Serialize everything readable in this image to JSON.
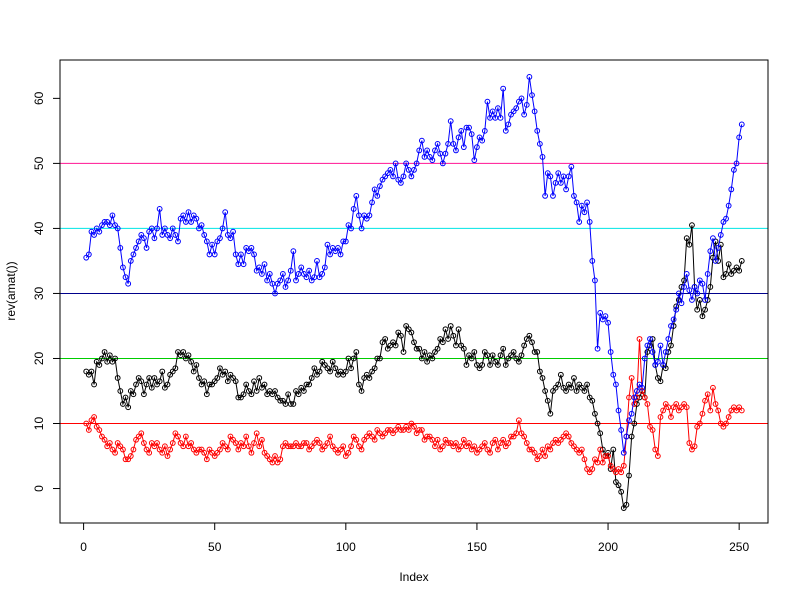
{
  "chart_data": {
    "type": "line",
    "xlabel": "Index",
    "ylabel": "rev(amat())",
    "xlim": [
      -9,
      261
    ],
    "ylim": [
      -5.3,
      65.9
    ],
    "xticks": [
      0,
      50,
      100,
      150,
      200,
      250
    ],
    "yticks": [
      0,
      10,
      20,
      30,
      40,
      50,
      60
    ],
    "hlines": [
      {
        "value": 10,
        "color": "#ff0000"
      },
      {
        "value": 20,
        "color": "#00cd00"
      },
      {
        "value": 30,
        "color": "#00008b"
      },
      {
        "value": 40,
        "color": "#00e5e5"
      },
      {
        "value": 50,
        "color": "#ff1493"
      }
    ],
    "x": [
      1,
      2,
      3,
      4,
      5,
      6,
      7,
      8,
      9,
      10,
      11,
      12,
      13,
      14,
      15,
      16,
      17,
      18,
      19,
      20,
      21,
      22,
      23,
      24,
      25,
      26,
      27,
      28,
      29,
      30,
      31,
      32,
      33,
      34,
      35,
      36,
      37,
      38,
      39,
      40,
      41,
      42,
      43,
      44,
      45,
      46,
      47,
      48,
      49,
      50,
      51,
      52,
      53,
      54,
      55,
      56,
      57,
      58,
      59,
      60,
      61,
      62,
      63,
      64,
      65,
      66,
      67,
      68,
      69,
      70,
      71,
      72,
      73,
      74,
      75,
      76,
      77,
      78,
      79,
      80,
      81,
      82,
      83,
      84,
      85,
      86,
      87,
      88,
      89,
      90,
      91,
      92,
      93,
      94,
      95,
      96,
      97,
      98,
      99,
      100,
      101,
      102,
      103,
      104,
      105,
      106,
      107,
      108,
      109,
      110,
      111,
      112,
      113,
      114,
      115,
      116,
      117,
      118,
      119,
      120,
      121,
      122,
      123,
      124,
      125,
      126,
      127,
      128,
      129,
      130,
      131,
      132,
      133,
      134,
      135,
      136,
      137,
      138,
      139,
      140,
      141,
      142,
      143,
      144,
      145,
      146,
      147,
      148,
      149,
      150,
      151,
      152,
      153,
      154,
      155,
      156,
      157,
      158,
      159,
      160,
      161,
      162,
      163,
      164,
      165,
      166,
      167,
      168,
      169,
      170,
      171,
      172,
      173,
      174,
      175,
      176,
      177,
      178,
      179,
      180,
      181,
      182,
      183,
      184,
      185,
      186,
      187,
      188,
      189,
      190,
      191,
      192,
      193,
      194,
      195,
      196,
      197,
      198,
      199,
      200,
      201,
      202,
      203,
      204,
      205,
      206,
      207,
      208,
      209,
      210,
      211,
      212,
      213,
      214,
      215,
      216,
      217,
      218,
      219,
      220,
      221,
      222,
      223,
      224,
      225,
      226,
      227,
      228,
      229,
      230,
      231,
      232,
      233,
      234,
      235,
      236,
      237,
      238,
      239,
      240,
      241,
      242,
      243,
      244,
      245,
      246,
      247,
      248,
      249,
      250,
      251
    ],
    "series": [
      {
        "color": "#000000",
        "values": [
          18,
          17.5,
          18,
          16,
          19.5,
          19,
          20,
          21,
          19.5,
          20.5,
          19.5,
          20,
          17,
          15,
          13,
          14,
          12.5,
          15,
          14.5,
          16,
          17,
          16.5,
          14.5,
          16,
          17,
          15.5,
          17,
          16,
          16.5,
          18,
          15.5,
          16,
          17.5,
          18,
          18.5,
          21,
          20.5,
          21,
          20,
          20.5,
          19.5,
          18,
          19,
          17,
          16,
          16.5,
          14.5,
          16,
          16,
          16.5,
          17,
          18.5,
          17.5,
          18,
          16.5,
          17.5,
          17,
          16.5,
          14,
          14,
          14.5,
          16,
          15,
          14.5,
          16.5,
          15,
          17,
          15.5,
          16,
          14.5,
          15,
          14.5,
          15,
          14,
          13.5,
          13.5,
          13,
          14.5,
          13,
          13,
          15,
          14.5,
          15.5,
          15,
          16,
          16,
          17,
          18.5,
          17.5,
          18,
          19.5,
          19,
          18.5,
          18,
          19.5,
          18.5,
          17.5,
          18,
          17.5,
          18,
          20,
          18.5,
          20,
          21,
          16,
          15,
          17,
          17.5,
          17,
          18,
          18.5,
          20,
          20,
          22.5,
          23,
          21.5,
          22,
          22.5,
          22,
          24,
          23.5,
          21,
          25,
          24.5,
          24,
          22.5,
          21.5,
          21.5,
          20,
          21,
          19.5,
          20.5,
          20,
          21,
          21.5,
          23,
          22.5,
          24.5,
          23,
          25,
          23.5,
          22,
          24.5,
          22,
          21.5,
          19,
          20.5,
          20,
          21,
          19,
          18.5,
          19,
          21,
          20.5,
          19,
          20.5,
          19.5,
          19,
          20.5,
          21.5,
          19,
          20,
          20.5,
          21,
          20,
          19.5,
          20.5,
          22,
          23,
          23.5,
          22.5,
          21,
          21,
          18,
          17,
          15,
          13.5,
          11.5,
          15,
          15.5,
          16,
          17.5,
          15.5,
          15,
          16,
          15.5,
          17,
          15,
          16,
          15.5,
          15,
          16,
          14,
          13.5,
          11.5,
          10,
          8.5,
          6,
          5,
          5.5,
          3,
          6,
          1,
          0.5,
          -0.5,
          -3,
          -2.5,
          2,
          8,
          10,
          13,
          14,
          15,
          14,
          21,
          22,
          23,
          19,
          17,
          16.5,
          19,
          18.5,
          21,
          22,
          25,
          28,
          29,
          31,
          32,
          38.5,
          37.5,
          40.5,
          31,
          27.5,
          29,
          26.5,
          27.5,
          29,
          31,
          35.5,
          38,
          35,
          37.5,
          32.5,
          33,
          34.5,
          33,
          33.5,
          34,
          33.5,
          35
        ]
      },
      {
        "color": "#ff0000",
        "values": [
          10,
          9,
          10.5,
          11,
          9.5,
          9,
          8,
          7.5,
          6.5,
          7,
          6,
          5.5,
          7,
          6.5,
          6,
          4.5,
          4.5,
          5,
          6,
          7.5,
          8,
          8.5,
          7,
          6,
          5.5,
          7,
          6.5,
          7,
          6,
          5.5,
          6.5,
          5,
          6,
          7,
          8.5,
          8,
          7,
          6.5,
          8,
          6.5,
          7,
          6,
          5.5,
          6,
          6,
          5.5,
          4.5,
          6,
          5.5,
          5,
          5.5,
          6,
          7,
          6.5,
          6,
          8,
          7.5,
          7,
          6,
          7,
          6.5,
          8,
          6.5,
          5.5,
          7,
          8.5,
          6.5,
          7.5,
          5.5,
          5,
          4.5,
          4,
          5,
          4,
          4.5,
          6.5,
          7,
          6.5,
          6.5,
          6.5,
          7,
          6.5,
          6.5,
          7,
          7,
          6,
          6.5,
          7,
          7.5,
          7,
          6,
          6.5,
          7,
          8,
          6.5,
          6,
          5.5,
          6,
          6.5,
          5,
          5.5,
          6.5,
          8,
          7.5,
          6.5,
          6,
          7.5,
          8,
          8.5,
          8,
          7.5,
          9,
          8.5,
          8,
          8.5,
          9,
          9,
          8.5,
          9,
          9.5,
          9,
          9,
          9.5,
          9,
          10,
          9.5,
          8.5,
          9,
          9,
          7.5,
          8,
          8,
          7.5,
          6.5,
          7.5,
          6,
          6.5,
          7.5,
          7,
          7,
          6.5,
          7,
          6,
          6.5,
          7.5,
          6.5,
          7,
          6,
          6.5,
          5.5,
          6,
          6.5,
          7,
          6,
          5.5,
          7,
          7.5,
          6,
          7,
          7.5,
          6.5,
          7,
          8,
          8,
          8.5,
          10.5,
          8.5,
          8,
          7,
          6,
          6,
          5.5,
          4.5,
          5,
          6,
          5,
          6.5,
          6,
          7,
          7.5,
          7,
          7.5,
          8,
          8.5,
          8,
          7,
          6.5,
          6,
          5.5,
          6,
          4.5,
          3,
          2.5,
          3,
          4.5,
          4,
          6,
          4,
          5,
          5,
          3.5,
          3,
          2.5,
          3,
          2.5,
          3.5,
          8,
          14,
          17,
          13,
          14,
          23,
          15,
          14,
          13,
          9.5,
          9,
          6,
          5,
          11,
          12,
          13,
          12.5,
          11,
          12.5,
          13,
          12,
          12.5,
          13,
          12.5,
          7,
          6,
          6.5,
          9.5,
          10,
          11.5,
          13.5,
          14.5,
          12,
          15.5,
          13,
          12,
          10,
          9.5,
          10,
          11,
          12,
          12.5,
          12,
          12.5,
          12
        ]
      },
      {
        "color": "#0000ff",
        "values": [
          35.5,
          36,
          39.5,
          39,
          40,
          39.5,
          40.5,
          41,
          41,
          40.5,
          42,
          40.5,
          40,
          37,
          34,
          32.5,
          31.5,
          35,
          36,
          37,
          38,
          39,
          38.5,
          37,
          39.5,
          40,
          38.5,
          40,
          43,
          39,
          40,
          39,
          38.5,
          40,
          39,
          38,
          41.5,
          42,
          41,
          42.5,
          41,
          42,
          41.5,
          40,
          40.5,
          39,
          38,
          36,
          37.5,
          36,
          38,
          38.5,
          40,
          42.5,
          39,
          38.5,
          39.5,
          36,
          34.5,
          36,
          34.5,
          37,
          36.5,
          37,
          36,
          33.5,
          34,
          33,
          34.5,
          32,
          33,
          31.5,
          30,
          31.5,
          32,
          33,
          31,
          32,
          33.5,
          36.5,
          32,
          33,
          34,
          33,
          32.5,
          33.5,
          32,
          32.5,
          35,
          32.5,
          33,
          34,
          37.5,
          36,
          37,
          36.5,
          37,
          36,
          38,
          38,
          40.5,
          40,
          43,
          45,
          42,
          40,
          42,
          41.5,
          42,
          44,
          46,
          45,
          46.5,
          47.5,
          48,
          48.5,
          49,
          48,
          50,
          47.5,
          47,
          48,
          50,
          49,
          48,
          49,
          50,
          52,
          53.5,
          51,
          52,
          51,
          50.5,
          52,
          53,
          51.5,
          50,
          51.5,
          53,
          56.5,
          53,
          52,
          54,
          55,
          52.5,
          55.5,
          55.5,
          54.5,
          50.5,
          52.5,
          54,
          53.5,
          55,
          59.5,
          57,
          58,
          57,
          58.5,
          57,
          61.5,
          55,
          56,
          57.5,
          58,
          58.5,
          59.5,
          60,
          57.5,
          59,
          63.3,
          60.5,
          58,
          55,
          53,
          51,
          45,
          48.5,
          48,
          45,
          47,
          48.5,
          47,
          48,
          46,
          48,
          49.5,
          45,
          44,
          41,
          43.5,
          42.5,
          44,
          41,
          35,
          32,
          21.5,
          27,
          26,
          26.5,
          25.5,
          21,
          17.5,
          16,
          12,
          9,
          5.5,
          8,
          10.5,
          11.5,
          14,
          15,
          16,
          15.5,
          20,
          22,
          23,
          21,
          19,
          19.5,
          22,
          19,
          21,
          23,
          25,
          26,
          27.5,
          30,
          28.5,
          31,
          33,
          30.5,
          29,
          31,
          30,
          32,
          31.5,
          29,
          33,
          36.5,
          38.5,
          35,
          37,
          39,
          41,
          41.5,
          43.5,
          46,
          49,
          50,
          54,
          56
        ]
      }
    ]
  }
}
